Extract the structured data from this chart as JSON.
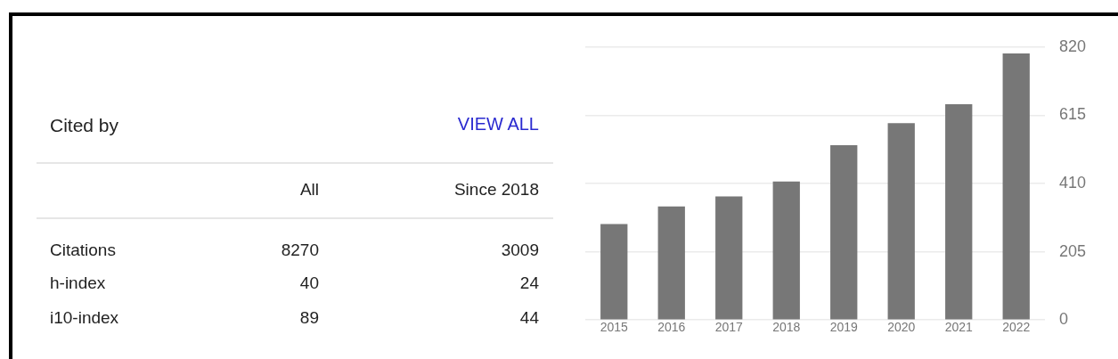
{
  "chart_data": [
    {
      "type": "other",
      "title": "Cited by",
      "annotations": [
        "VIEW ALL",
        "All",
        "Since 2018",
        "Citations",
        "8270",
        "3009",
        "h-index",
        "40",
        "24",
        "i10-index",
        "89",
        "44"
      ]
    },
    {
      "type": "bar",
      "categories": [
        "2015",
        "2016",
        "2017",
        "2018",
        "2019",
        "2020",
        "2021",
        "2022"
      ],
      "values": [
        288,
        341,
        371,
        416,
        525,
        591,
        648,
        801
      ],
      "color": "#777777",
      "ylim": [
        0,
        820
      ],
      "yticks": [
        0,
        205,
        410,
        615,
        820
      ],
      "grid": "y",
      "legend": false
    }
  ]
}
